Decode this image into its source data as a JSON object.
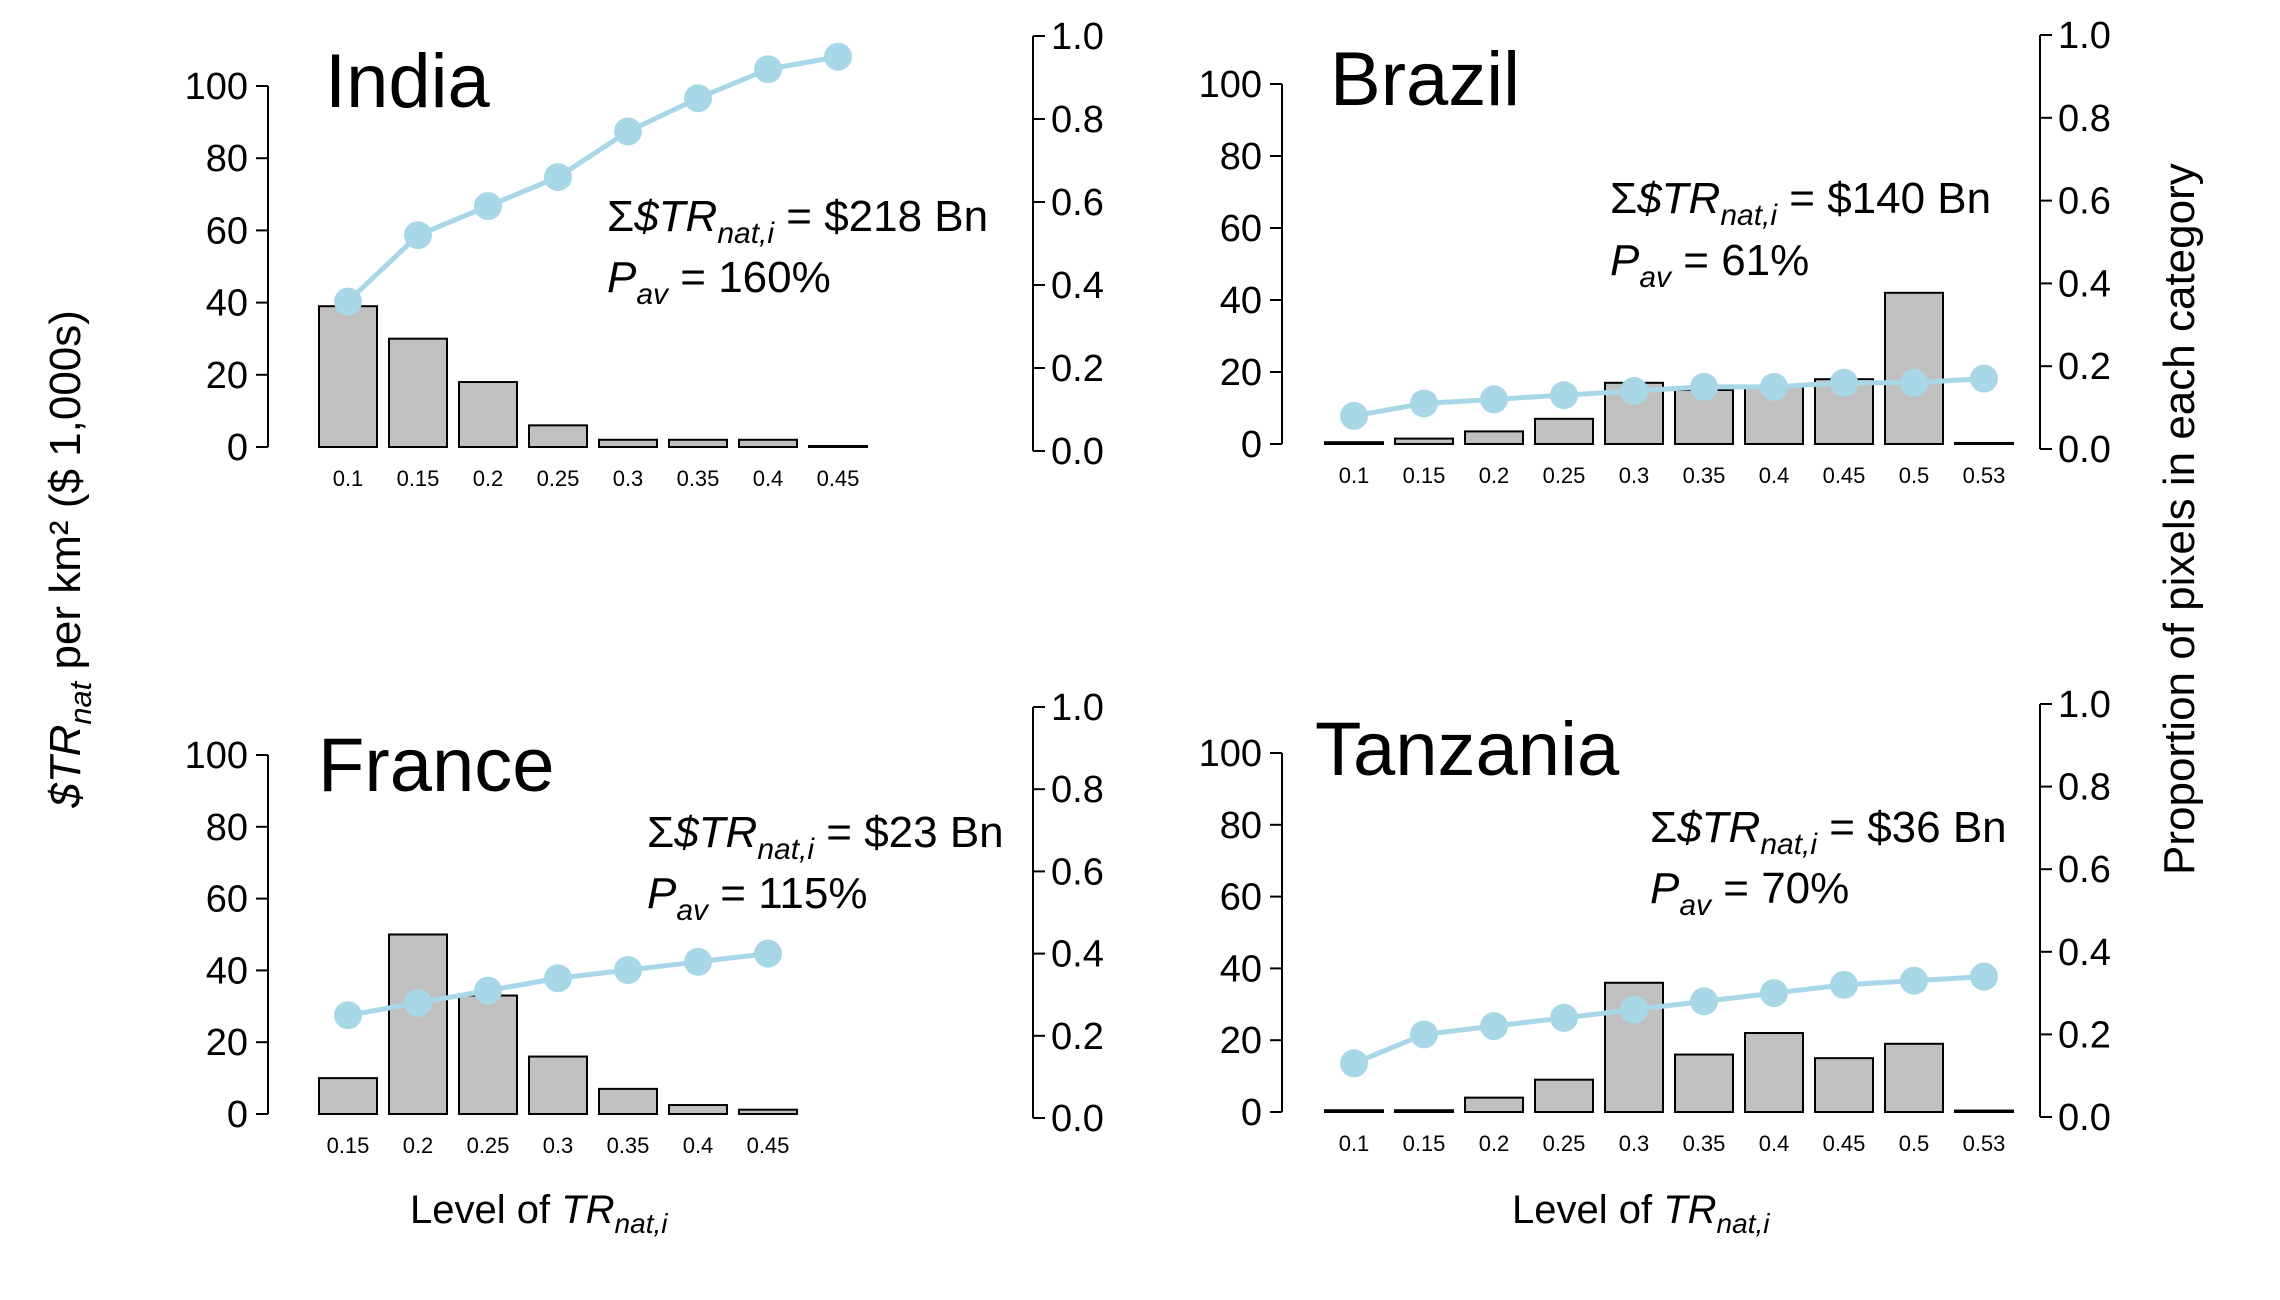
{
  "figure": {
    "left_axis_label": {
      "main": "$TR",
      "sub": "nat",
      "rest": " per km² ($ 1,000s)"
    },
    "right_axis_label": "Proportion of pixels in each category",
    "x_axis_label_main": "Level of ",
    "x_axis_label_var": "TR",
    "x_axis_label_sub": "nat,i",
    "bar_color": "#c0c0c0",
    "line_color": "#a8d8e8"
  },
  "chart_data": [
    {
      "type": "bar",
      "title": "India",
      "annotation_sum_value": "= $218 Bn",
      "annotation_pav_value": "= 160%",
      "categories": [
        "0.1",
        "0.15",
        "0.2",
        "0.25",
        "0.3",
        "0.35",
        "0.4",
        "0.45"
      ],
      "bar_values": [
        39,
        30,
        18,
        6,
        2,
        2,
        2,
        0
      ],
      "line_values": [
        0.36,
        0.52,
        0.59,
        0.66,
        0.77,
        0.85,
        0.92,
        0.95
      ],
      "ylim_left": [
        0,
        100
      ],
      "ylim_right": [
        0,
        1
      ],
      "yticks_left": [
        "0",
        "20",
        "40",
        "60",
        "80",
        "100"
      ],
      "yticks_right": [
        "0.0",
        "0.2",
        "0.4",
        "0.6",
        "0.8",
        "1.0"
      ]
    },
    {
      "type": "bar",
      "title": "Brazil",
      "annotation_sum_value": "= $140 Bn",
      "annotation_pav_value": "= 61%",
      "categories": [
        "0.1",
        "0.15",
        "0.2",
        "0.25",
        "0.3",
        "0.35",
        "0.4",
        "0.45",
        "0.5",
        "0.53"
      ],
      "bar_values": [
        0.5,
        1.5,
        3.5,
        7,
        17,
        15,
        16,
        18,
        42,
        0.3
      ],
      "line_values": [
        0.08,
        0.11,
        0.12,
        0.13,
        0.14,
        0.15,
        0.15,
        0.16,
        0.16,
        0.17
      ],
      "ylim_left": [
        0,
        100
      ],
      "ylim_right": [
        0,
        1
      ],
      "yticks_left": [
        "0",
        "20",
        "40",
        "60",
        "80",
        "100"
      ],
      "yticks_right": [
        "0.0",
        "0.2",
        "0.4",
        "0.6",
        "0.8",
        "1.0"
      ]
    },
    {
      "type": "bar",
      "title": "France",
      "annotation_sum_value": "= $23 Bn",
      "annotation_pav_value": "= 115%",
      "categories": [
        "0.15",
        "0.2",
        "0.25",
        "0.3",
        "0.35",
        "0.4",
        "0.45"
      ],
      "bar_values": [
        10,
        50,
        33,
        16,
        7,
        2.5,
        1.2
      ],
      "line_values": [
        0.25,
        0.28,
        0.31,
        0.34,
        0.36,
        0.38,
        0.4
      ],
      "ylim_left": [
        0,
        100
      ],
      "ylim_right": [
        0,
        1
      ],
      "yticks_left": [
        "0",
        "20",
        "40",
        "60",
        "80",
        "100"
      ],
      "yticks_right": [
        "0.0",
        "0.2",
        "0.4",
        "0.6",
        "0.8",
        "1.0"
      ]
    },
    {
      "type": "bar",
      "title": "Tanzania",
      "annotation_sum_value": "= $36 Bn",
      "annotation_pav_value": "= 70%",
      "categories": [
        "0.1",
        "0.15",
        "0.2",
        "0.25",
        "0.3",
        "0.35",
        "0.4",
        "0.45",
        "0.5",
        "0.53"
      ],
      "bar_values": [
        0.5,
        0.5,
        4,
        9,
        36,
        16,
        22,
        15,
        19,
        0.4
      ],
      "line_values": [
        0.13,
        0.2,
        0.22,
        0.24,
        0.26,
        0.28,
        0.3,
        0.32,
        0.33,
        0.34
      ],
      "ylim_left": [
        0,
        100
      ],
      "ylim_right": [
        0,
        1
      ],
      "yticks_left": [
        "0",
        "20",
        "40",
        "60",
        "80",
        "100"
      ],
      "yticks_right": [
        "0.0",
        "0.2",
        "0.4",
        "0.6",
        "0.8",
        "1.0"
      ]
    }
  ]
}
